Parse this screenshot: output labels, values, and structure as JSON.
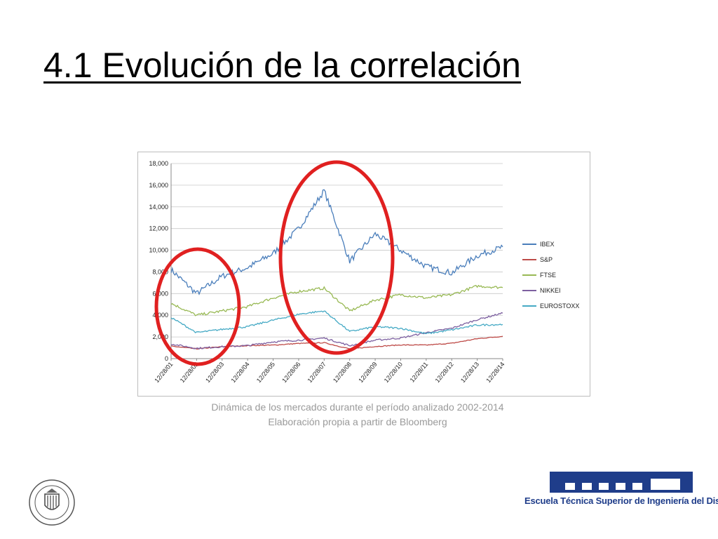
{
  "slide": {
    "title": "4.1 Evolución de la correlación",
    "caption_line1": "Dinámica de los mercados durante el período analizado 2002-2014",
    "caption_line2": "Elaboración propia a partir de Bloomberg"
  },
  "logo": {
    "school_name": "Escuela Técnica Superior de Ingeniería del Diseño",
    "seal_text": "UNIVERSIDAD POLITECNICA VALENCIA"
  },
  "colors": {
    "IBEX": "#4a7ebb",
    "S&P": "#be4b48",
    "FTSE": "#98b954",
    "NIKKEI": "#7d60a0",
    "EUROSTOXX": "#46aac5",
    "highlight": "#e02020",
    "logo_blue": "#1f3d8a"
  },
  "chart_data": {
    "type": "line",
    "title": "",
    "xlabel": "",
    "ylabel": "",
    "ylim": [
      0,
      18000
    ],
    "yticks": [
      "0",
      "2,000",
      "4,000",
      "6,000",
      "8,000",
      "10,000",
      "12,000",
      "14,000",
      "16,000",
      "18,000"
    ],
    "ytick_values": [
      0,
      2000,
      4000,
      6000,
      8000,
      10000,
      12000,
      14000,
      16000,
      18000
    ],
    "x": [
      "12/28/01",
      "12/28/02",
      "12/28/03",
      "12/28/04",
      "12/28/05",
      "12/28/06",
      "12/28/07",
      "12/28/08",
      "12/28/09",
      "12/28/10",
      "12/28/11",
      "12/28/12",
      "12/28/13",
      "12/28/14"
    ],
    "grid": "horizontal",
    "legend_position": "right",
    "series": [
      {
        "name": "IBEX",
        "values": [
          8200,
          6000,
          7600,
          8400,
          9700,
          12000,
          15500,
          9000,
          11500,
          10000,
          8500,
          7900,
          9500,
          10300
        ]
      },
      {
        "name": "S&P",
        "values": [
          1150,
          900,
          1100,
          1200,
          1250,
          1400,
          1470,
          900,
          1120,
          1260,
          1250,
          1420,
          1840,
          2060
        ]
      },
      {
        "name": "FTSE",
        "values": [
          5100,
          4000,
          4400,
          4800,
          5600,
          6200,
          6500,
          4400,
          5400,
          5900,
          5600,
          5900,
          6700,
          6550
        ]
      },
      {
        "name": "NIKKEI",
        "values": [
          1350,
          950,
          1100,
          1200,
          1550,
          1700,
          1900,
          1200,
          1700,
          1900,
          2400,
          2800,
          3600,
          4200
        ]
      },
      {
        "name": "EUROSTOXX",
        "values": [
          3800,
          2400,
          2700,
          2950,
          3550,
          4100,
          4400,
          2500,
          2950,
          2800,
          2300,
          2650,
          3100,
          3150
        ]
      }
    ],
    "annotations": [
      "red ellipse around 2001-2003",
      "red ellipse around 2006-2009"
    ]
  }
}
